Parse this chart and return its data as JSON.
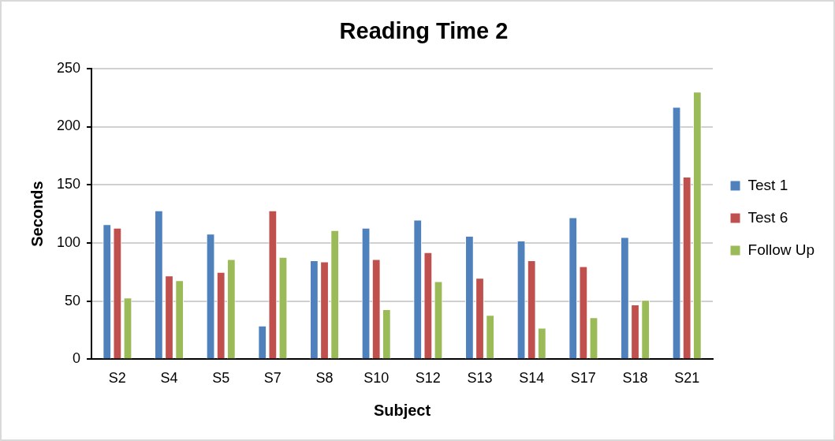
{
  "chart_data": {
    "type": "bar",
    "title": "Reading Time 2",
    "xlabel": "Subject",
    "ylabel": "Seconds",
    "categories": [
      "S2",
      "S4",
      "S5",
      "S7",
      "S8",
      "S10",
      "S12",
      "S13",
      "S14",
      "S17",
      "S18",
      "S21"
    ],
    "series": [
      {
        "name": "Test 1",
        "color": "#4f81bd",
        "values": [
          116,
          128,
          108,
          29,
          85,
          113,
          120,
          106,
          102,
          122,
          105,
          217
        ]
      },
      {
        "name": "Test 6",
        "color": "#c0504d",
        "values": [
          113,
          72,
          75,
          128,
          84,
          86,
          92,
          70,
          85,
          80,
          47,
          157
        ]
      },
      {
        "name": "Follow Up",
        "color": "#9bbb59",
        "values": [
          53,
          68,
          86,
          88,
          111,
          43,
          67,
          38,
          27,
          36,
          51,
          230
        ]
      }
    ],
    "ylim": [
      0,
      250
    ],
    "yticks": [
      0,
      50,
      100,
      150,
      200,
      250
    ],
    "grid": "y",
    "legend": "right"
  }
}
